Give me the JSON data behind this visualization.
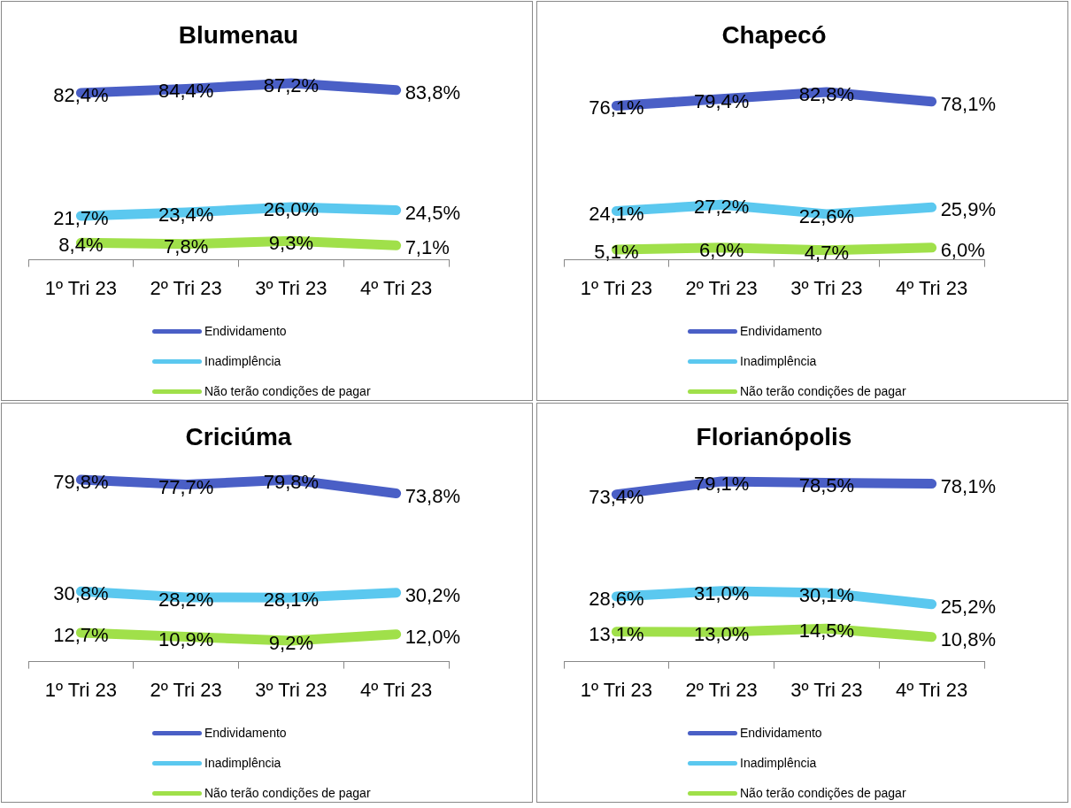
{
  "chart_data": [
    {
      "type": "line",
      "title": "Blumenau",
      "categories": [
        "1º Tri 23",
        "2º Tri 23",
        "3º Tri 23",
        "4º Tri 23"
      ],
      "tick_labels": "x",
      "legend": "bottom",
      "series": [
        {
          "name": "Endividamento",
          "color": "#4a5fc6",
          "values": [
            82.4,
            84.4,
            87.2,
            83.8
          ],
          "value_labels": [
            "82,4%",
            "84,4%",
            "87,2%",
            "83,8%"
          ]
        },
        {
          "name": "Inadimplência",
          "color": "#5bc8ef",
          "values": [
            21.7,
            23.4,
            26.0,
            24.5
          ],
          "value_labels": [
            "21,7%",
            "23,4%",
            "26,0%",
            "24,5%"
          ]
        },
        {
          "name": "Não terão condições de pagar",
          "color": "#a0e04a",
          "values": [
            8.4,
            7.8,
            9.3,
            7.1
          ],
          "value_labels": [
            "8,4%",
            "7,8%",
            "9,3%",
            "7,1%"
          ]
        }
      ]
    },
    {
      "type": "line",
      "title": "Chapecó",
      "categories": [
        "1º Tri 23",
        "2º Tri 23",
        "3º Tri 23",
        "4º Tri 23"
      ],
      "tick_labels": "x",
      "legend": "bottom",
      "series": [
        {
          "name": "Endividamento",
          "color": "#4a5fc6",
          "values": [
            76.1,
            79.4,
            82.8,
            78.1
          ],
          "value_labels": [
            "76,1%",
            "79,4%",
            "82,8%",
            "78,1%"
          ]
        },
        {
          "name": "Inadimplência",
          "color": "#5bc8ef",
          "values": [
            24.1,
            27.2,
            22.6,
            25.9
          ],
          "value_labels": [
            "24,1%",
            "27,2%",
            "22,6%",
            "25,9%"
          ]
        },
        {
          "name": "Não terão condições de pagar",
          "color": "#a0e04a",
          "values": [
            5.1,
            6.0,
            4.7,
            6.0
          ],
          "value_labels": [
            "5,1%",
            "6,0%",
            "4,7%",
            "6,0%"
          ]
        }
      ]
    },
    {
      "type": "line",
      "title": "Criciúma",
      "categories": [
        "1º Tri 23",
        "2º Tri 23",
        "3º Tri 23",
        "4º Tri 23"
      ],
      "tick_labels": "x",
      "legend": "bottom",
      "series": [
        {
          "name": "Endividamento",
          "color": "#4a5fc6",
          "values": [
            79.8,
            77.7,
            79.8,
            73.8
          ],
          "value_labels": [
            "79,8%",
            "77,7%",
            "79,8%",
            "73,8%"
          ]
        },
        {
          "name": "Inadimplência",
          "color": "#5bc8ef",
          "values": [
            30.8,
            28.2,
            28.1,
            30.2
          ],
          "value_labels": [
            "30,8%",
            "28,2%",
            "28,1%",
            "30,2%"
          ]
        },
        {
          "name": "Não terão condições de pagar",
          "color": "#a0e04a",
          "values": [
            12.7,
            10.9,
            9.2,
            12.0
          ],
          "value_labels": [
            "12,7%",
            "10,9%",
            "9,2%",
            "12,0%"
          ]
        }
      ]
    },
    {
      "type": "line",
      "title": "Florianópolis",
      "categories": [
        "1º Tri 23",
        "2º Tri 23",
        "3º Tri 23",
        "4º Tri 23"
      ],
      "tick_labels": "x",
      "legend": "bottom",
      "series": [
        {
          "name": "Endividamento",
          "color": "#4a5fc6",
          "values": [
            73.4,
            79.1,
            78.5,
            78.1
          ],
          "value_labels": [
            "73,4%",
            "79,1%",
            "78,5%",
            "78,1%"
          ]
        },
        {
          "name": "Inadimplência",
          "color": "#5bc8ef",
          "values": [
            28.6,
            31.0,
            30.1,
            25.2
          ],
          "value_labels": [
            "28,6%",
            "31,0%",
            "30,1%",
            "25,2%"
          ]
        },
        {
          "name": "Não terão condições de pagar",
          "color": "#a0e04a",
          "values": [
            13.1,
            13.0,
            14.5,
            10.8
          ],
          "value_labels": [
            "13,1%",
            "13,0%",
            "14,5%",
            "10,8%"
          ]
        }
      ]
    }
  ]
}
